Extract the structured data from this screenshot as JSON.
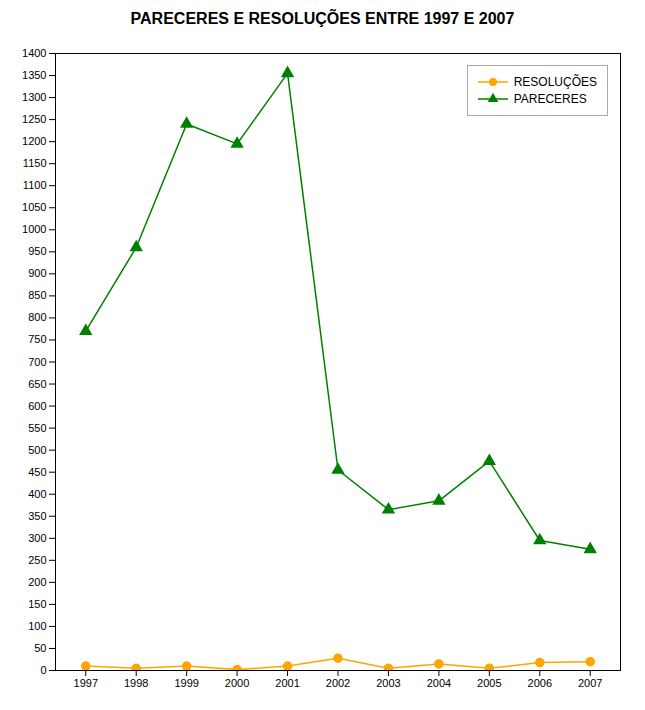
{
  "chart_data": {
    "type": "line",
    "title": "PARECERES E RESOLUÇÕES ENTRE 1997 E 2007",
    "x": [
      1997,
      1998,
      1999,
      2000,
      2001,
      2002,
      2003,
      2004,
      2005,
      2006,
      2007
    ],
    "series": [
      {
        "name": "RESOLUÇÕES",
        "color": "#FFA500",
        "marker": "circle",
        "values": [
          10,
          5,
          10,
          2,
          10,
          28,
          5,
          15,
          5,
          18,
          20
        ]
      },
      {
        "name": "PARECERES",
        "color": "#008000",
        "marker": "triangle",
        "values": [
          770,
          960,
          1240,
          1195,
          1355,
          455,
          365,
          385,
          475,
          295,
          275
        ]
      }
    ],
    "xlim": [
      1996.4,
      2007.6
    ],
    "xticks": [
      1997,
      1998,
      1999,
      2000,
      2001,
      2002,
      2003,
      2004,
      2005,
      2006,
      2007
    ],
    "ylim": [
      0,
      1400
    ],
    "yticks": [
      0,
      50,
      100,
      150,
      200,
      250,
      300,
      350,
      400,
      450,
      500,
      550,
      600,
      650,
      700,
      750,
      800,
      850,
      900,
      950,
      1000,
      1050,
      1100,
      1150,
      1200,
      1250,
      1300,
      1350,
      1400
    ],
    "grid": false,
    "legend": "upper right"
  }
}
